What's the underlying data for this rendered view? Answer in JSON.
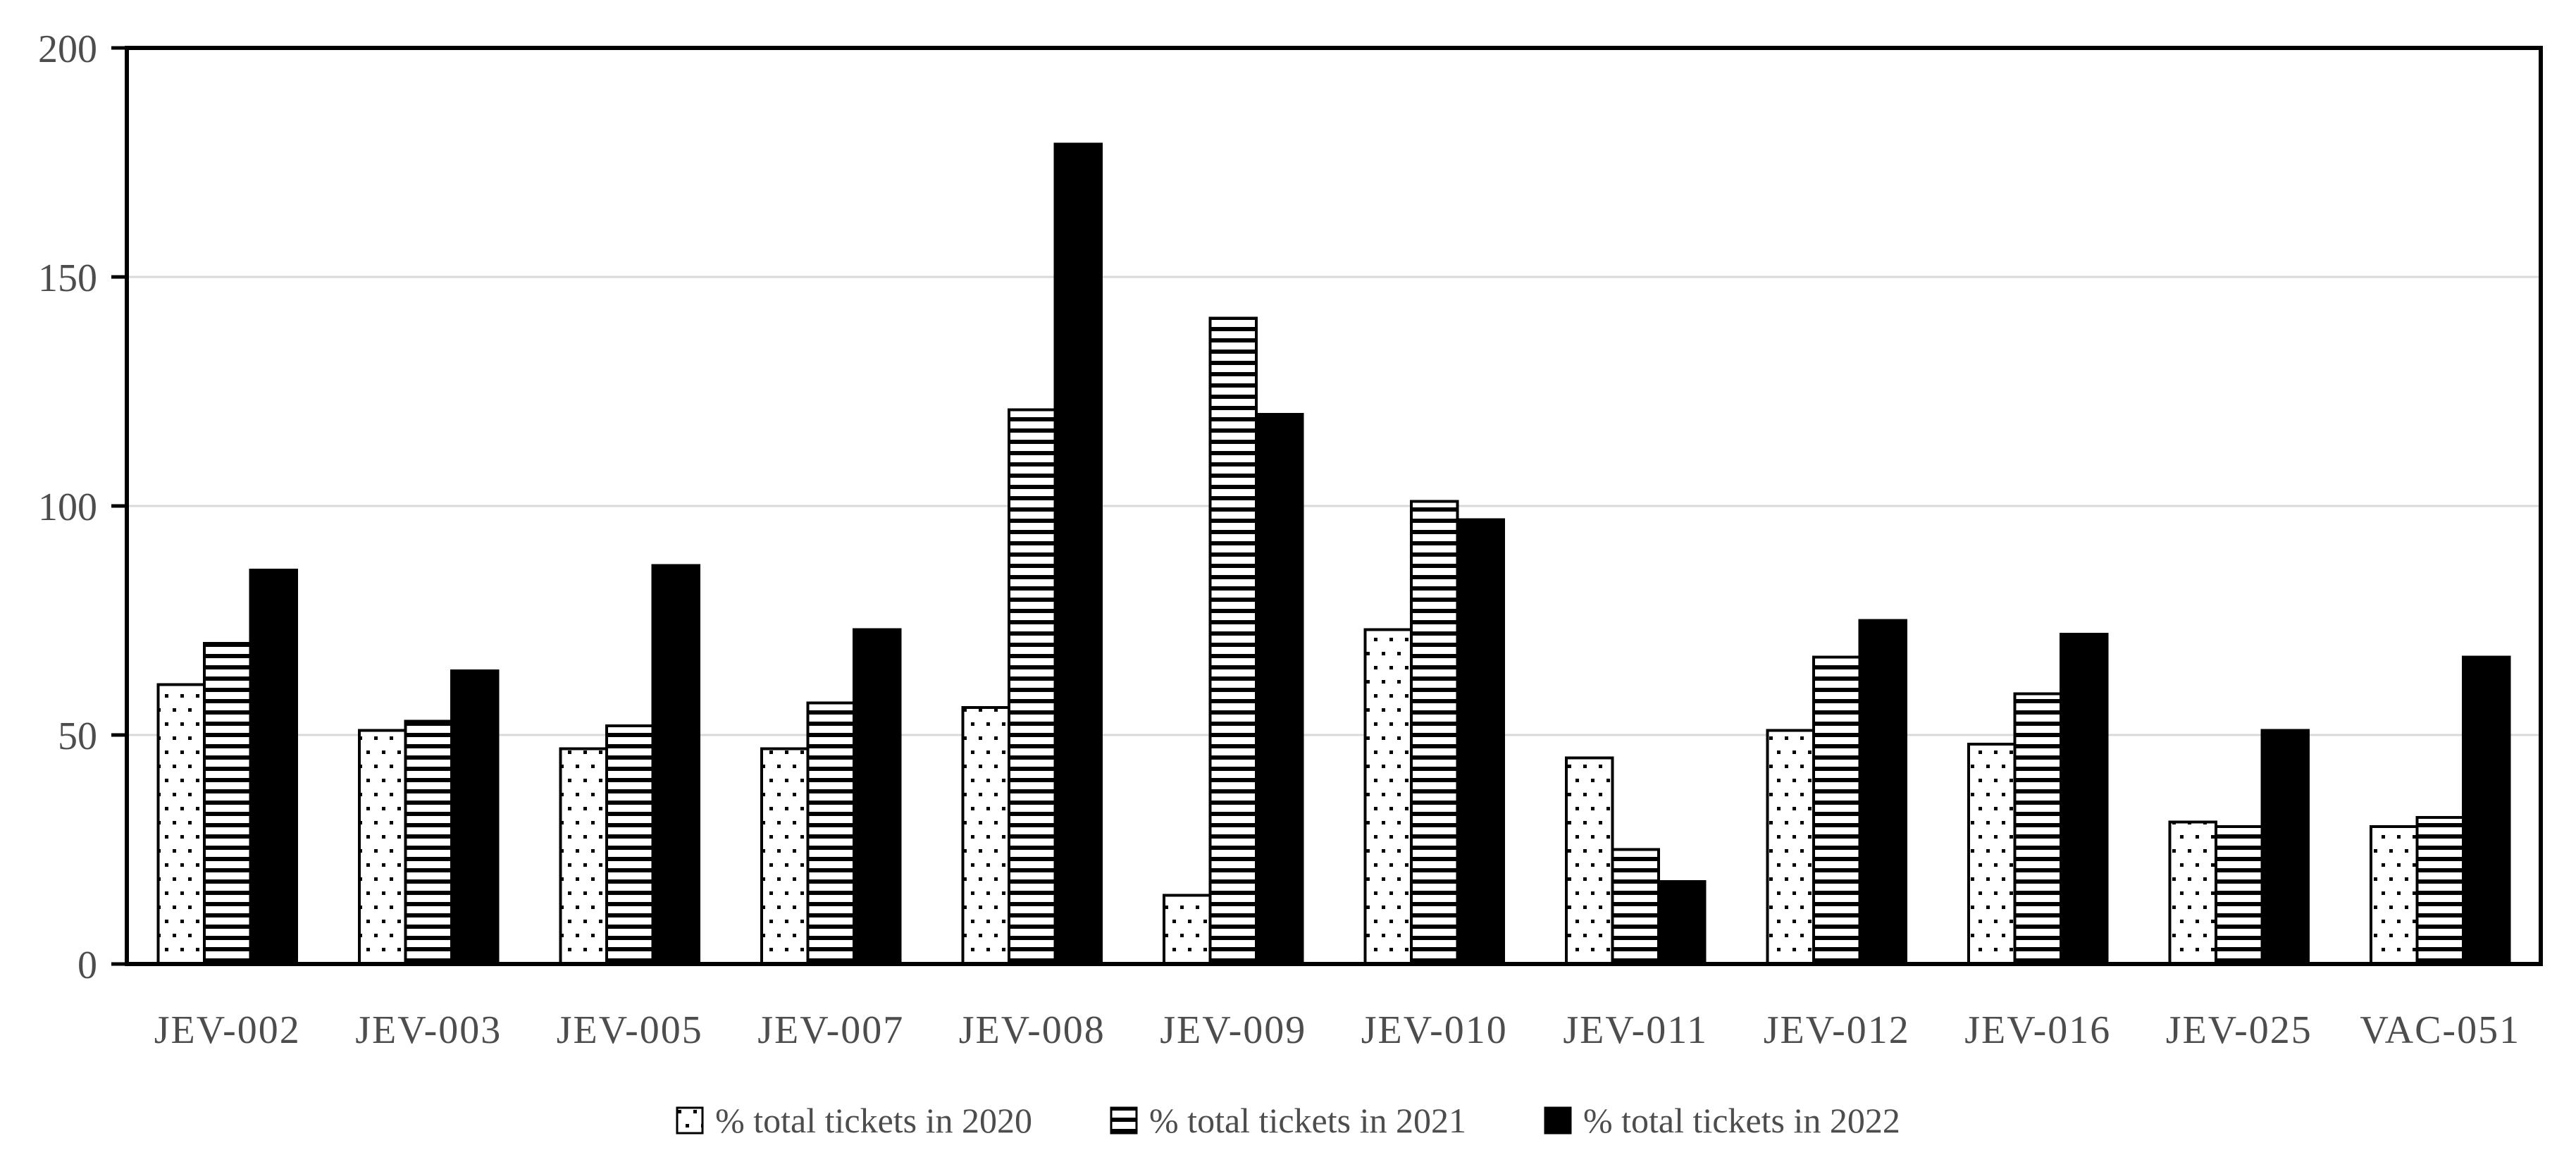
{
  "figure": {
    "background": "#ffffff"
  },
  "chart_data": {
    "type": "bar",
    "title": "",
    "xlabel": "",
    "ylabel": "",
    "categories": [
      "JEV-002",
      "JEV-003",
      "JEV-005",
      "JEV-007",
      "JEV-008",
      "JEV-009",
      "JEV-010",
      "JEV-011",
      "JEV-012",
      "JEV-016",
      "JEV-025",
      "VAC-051"
    ],
    "series": [
      {
        "name": "% total tickets in 2020",
        "year": "2020",
        "style": "dotted",
        "values": [
          61,
          51,
          47,
          47,
          56,
          15,
          73,
          45,
          51,
          48,
          31,
          30
        ]
      },
      {
        "name": "% total tickets in 2021",
        "year": "2021",
        "style": "horizontal-lines",
        "values": [
          70,
          53,
          52,
          57,
          121,
          141,
          101,
          25,
          67,
          59,
          30,
          32
        ]
      },
      {
        "name": "% total tickets in 2022",
        "year": "2022",
        "style": "solid",
        "values": [
          86,
          64,
          87,
          73,
          179,
          120,
          97,
          18,
          75,
          72,
          51,
          67
        ]
      }
    ],
    "ylim": [
      0,
      200
    ],
    "yticks": [
      0,
      50,
      100,
      150,
      200
    ],
    "grid": "horizontal",
    "legend_position": "bottom-center",
    "colors": {
      "bar_fill": "#ffffff",
      "bar_stroke": "#000000",
      "solid_fill": "#000000",
      "gridline": "#d9d9d9",
      "axis": "#000000",
      "tick_label": "#4d4d4d"
    }
  }
}
